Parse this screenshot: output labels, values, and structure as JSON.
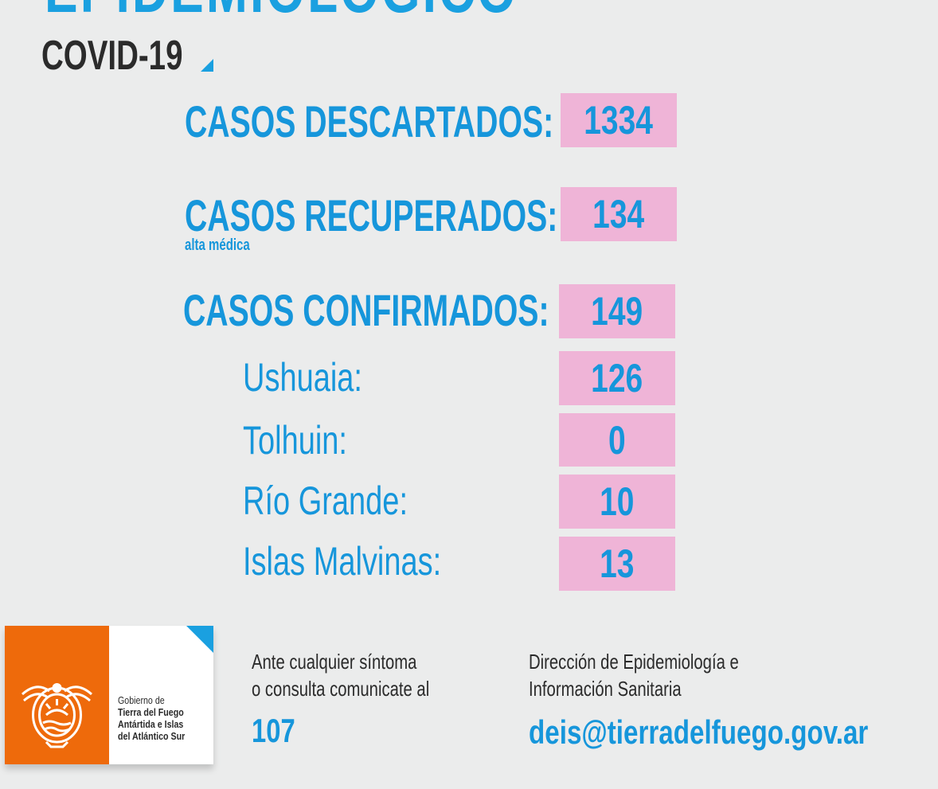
{
  "header": {
    "partial_title": "EPIDEMIOLÓGICO",
    "subtitle": "COVID-19"
  },
  "stats": {
    "descartados": {
      "label": "CASOS DESCARTADOS:",
      "value": "1334"
    },
    "recuperados": {
      "label": "CASOS RECUPERADOS:",
      "note": "alta médica",
      "value": "134"
    },
    "confirmados": {
      "label": "CASOS CONFIRMADOS:",
      "value": "149"
    }
  },
  "cities": [
    {
      "label": "Ushuaia:",
      "value": "126"
    },
    {
      "label": "Tolhuin:",
      "value": "0"
    },
    {
      "label": "Río Grande:",
      "value": "10"
    },
    {
      "label": "Islas Malvinas:",
      "value": "13"
    }
  ],
  "logo": {
    "line1": "Gobierno de",
    "line2": "Tierra del Fuego",
    "line3": "Antártida e Islas",
    "line4": "del Atlántico Sur",
    "icon": "provincial-emblem-icon"
  },
  "footer": {
    "contact_line1": "Ante cualquier síntoma",
    "contact_line2": "o consulta comunicate al",
    "phone": "107",
    "office_line1": "Dirección de Epidemiología e",
    "office_line2": "Información Sanitaria",
    "email": "deis@tierradelfuego.gov.ar"
  },
  "colors": {
    "background": "#ebecec",
    "accent_blue": "#1696db",
    "value_box": "#efb4d7",
    "logo_orange": "#ee6a0b",
    "dark_text": "#2b2b2b"
  }
}
